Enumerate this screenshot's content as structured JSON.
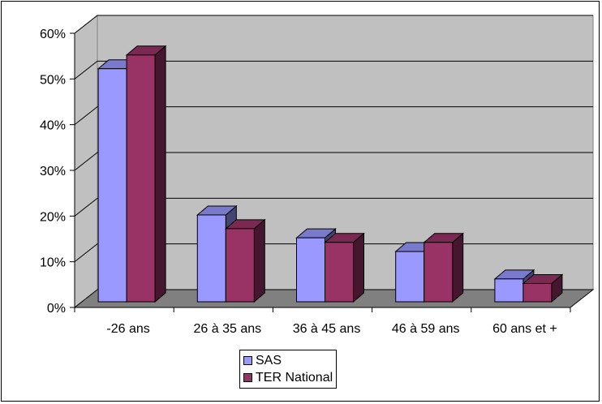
{
  "chart_data": {
    "type": "bar",
    "three_d": true,
    "categories": [
      "-26 ans",
      "26 à 35 ans",
      "36 à 45 ans",
      "46 à 59 ans",
      "60 ans et +"
    ],
    "series": [
      {
        "name": "SAS",
        "values": [
          51,
          19,
          14,
          11,
          5
        ],
        "color": "#9999FF"
      },
      {
        "name": "TER National",
        "values": [
          54,
          16,
          13,
          13,
          4
        ],
        "color": "#993366"
      }
    ],
    "y_ticks": [
      "0%",
      "10%",
      "20%",
      "30%",
      "40%",
      "50%",
      "60%"
    ],
    "ylim": [
      0,
      60
    ],
    "y_unit": "%",
    "grid": true,
    "wall_color": "#C0C0C0",
    "floor_color": "#808080",
    "legend_position": "bottom"
  }
}
